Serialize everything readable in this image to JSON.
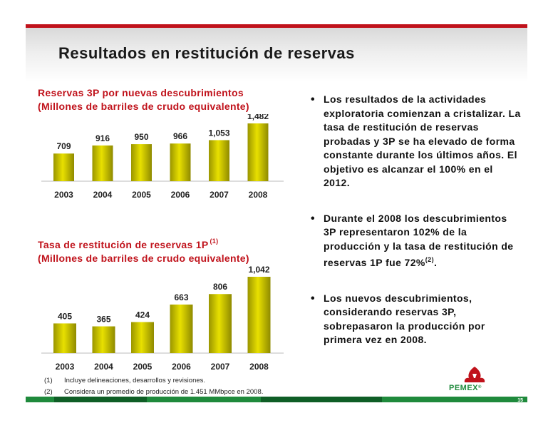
{
  "page": {
    "title": "Resultados en restitución de reservas",
    "page_number": "15",
    "logo_text": "PEMEX",
    "logo_mark": "®",
    "colors": {
      "accent_red": "#c0121b",
      "footer_green": "#1f8a3c",
      "bar_gold": "#c8c000"
    }
  },
  "chart_data": [
    {
      "type": "bar",
      "title_line1": "Reservas 3P por nuevas descubrimientos",
      "title_line2": "(Millones de barriles de crudo equivalente)",
      "categories": [
        "2003",
        "2004",
        "2005",
        "2006",
        "2007",
        "2008"
      ],
      "values": [
        709,
        916,
        950,
        966,
        1053,
        1482
      ],
      "labels": [
        "709",
        "916",
        "950",
        "966",
        "1,053",
        "1,482"
      ],
      "ylim": [
        0,
        1482
      ],
      "grid": false
    },
    {
      "type": "bar",
      "title_line1": "Tasa de restitución de reservas 1P",
      "title_sup": "(1)",
      "title_line2": "(Millones de barriles de crudo equivalente)",
      "categories": [
        "2003",
        "2004",
        "2005",
        "2006",
        "2007",
        "2008"
      ],
      "values": [
        405,
        365,
        424,
        663,
        806,
        1042
      ],
      "labels": [
        "405",
        "365",
        "424",
        "663",
        "806",
        "1,042"
      ],
      "ylim": [
        0,
        1042
      ],
      "grid": false
    }
  ],
  "bullets": [
    {
      "text": "Los resultados de la actividades exploratoria comienzan a cristalizar. La tasa de restitución de reservas probadas y 3P se ha elevado de forma constante durante los últimos años. El objetivo es alcanzar el 100% en el 2012."
    },
    {
      "text": "Durante el 2008 los descubrimientos 3P representaron 102% de la producción y la tasa de restitución de reservas 1P fue 72%",
      "sup": "(2)",
      "tail": "."
    },
    {
      "text": "Los nuevos descubrimientos, considerando reservas 3P, sobrepasaron la producción por primera vez en 2008."
    }
  ],
  "notes": [
    {
      "num": "(1)",
      "text": "Incluye delineaciones, desarrollos y revisiones."
    },
    {
      "num": "(2)",
      "text": "Considera un promedio de producción de 1.451 MMbpce en 2008."
    }
  ]
}
